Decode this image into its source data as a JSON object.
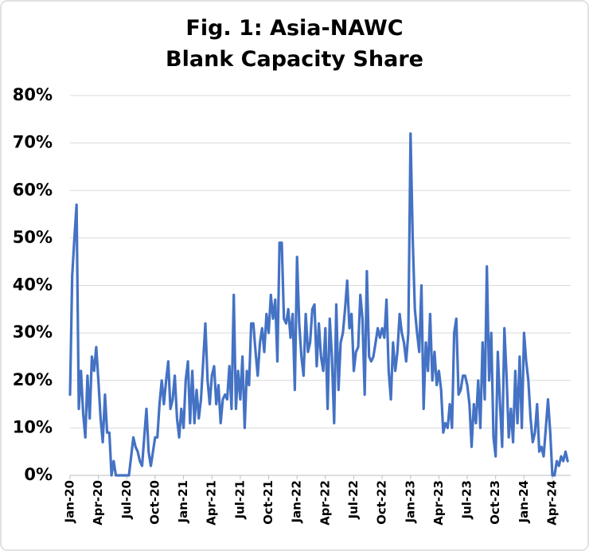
{
  "chart_data": {
    "type": "line",
    "title": [
      "Fig. 1: Asia-NAWC",
      "Blank Capacity Share"
    ],
    "categories": [
      "Jan-20",
      null,
      null,
      null,
      null,
      null,
      null,
      null,
      null,
      null,
      null,
      null,
      null,
      "Apr-20",
      null,
      null,
      null,
      null,
      null,
      null,
      null,
      null,
      null,
      null,
      null,
      null,
      "Jul-20",
      null,
      null,
      null,
      null,
      null,
      null,
      null,
      null,
      null,
      null,
      null,
      null,
      "Oct-20",
      null,
      null,
      null,
      null,
      null,
      null,
      null,
      null,
      null,
      null,
      null,
      null,
      "Jan-21",
      null,
      null,
      null,
      null,
      null,
      null,
      null,
      null,
      null,
      null,
      null,
      null,
      "Apr-21",
      null,
      null,
      null,
      null,
      null,
      null,
      null,
      null,
      null,
      null,
      null,
      null,
      "Jul-21",
      null,
      null,
      null,
      null,
      null,
      null,
      null,
      null,
      null,
      null,
      null,
      null,
      "Oct-21",
      null,
      null,
      null,
      null,
      null,
      null,
      null,
      null,
      null,
      null,
      null,
      null,
      "Jan-22",
      null,
      null,
      null,
      null,
      null,
      null,
      null,
      null,
      null,
      null,
      null,
      null,
      "Apr-22",
      null,
      null,
      null,
      null,
      null,
      null,
      null,
      null,
      null,
      null,
      null,
      null,
      "Jul-22",
      null,
      null,
      null,
      null,
      null,
      null,
      null,
      null,
      null,
      null,
      null,
      null,
      "Oct-22",
      null,
      null,
      null,
      null,
      null,
      null,
      null,
      null,
      null,
      null,
      null,
      null,
      "Jan-23",
      null,
      null,
      null,
      null,
      null,
      null,
      null,
      null,
      null,
      null,
      null,
      null,
      "Apr-23",
      null,
      null,
      null,
      null,
      null,
      null,
      null,
      null,
      null,
      null,
      null,
      null,
      "Jul-23",
      null,
      null,
      null,
      null,
      null,
      null,
      null,
      null,
      null,
      null,
      null,
      null,
      "Oct-23",
      null,
      null,
      null,
      null,
      null,
      null,
      null,
      null,
      null,
      null,
      null,
      null,
      "Jan-24",
      null,
      null,
      null,
      null,
      null,
      null,
      null,
      null,
      null,
      null,
      null,
      null,
      "Apr-24",
      null,
      null,
      null,
      null,
      null,
      null,
      null
    ],
    "series": [
      {
        "color": "#4472c4",
        "values": [
          17,
          42,
          50,
          57,
          14,
          22,
          13,
          8,
          21,
          12,
          25,
          22,
          27,
          20,
          12,
          7,
          17,
          9,
          9,
          0,
          3,
          0,
          0,
          0,
          0,
          0,
          0,
          0,
          4,
          8,
          6,
          5,
          3,
          2,
          8,
          14,
          5,
          2,
          5,
          8,
          8,
          15,
          20,
          15,
          20,
          24,
          14,
          16,
          21,
          12,
          8,
          14,
          10,
          20,
          24,
          11,
          22,
          11,
          18,
          12,
          16,
          24,
          32,
          20,
          15,
          21,
          23,
          15,
          19,
          11,
          16,
          17,
          16,
          23,
          14,
          38,
          14,
          22,
          16,
          25,
          10,
          22,
          19,
          32,
          32,
          26,
          21,
          28,
          31,
          26,
          34,
          30,
          38,
          33,
          37,
          24,
          49,
          49,
          33,
          32,
          35,
          29,
          34,
          18,
          46,
          32,
          25,
          21,
          34,
          26,
          28,
          35,
          36,
          23,
          32,
          25,
          22,
          31,
          14,
          33,
          25,
          11,
          36,
          18,
          28,
          30,
          35,
          41,
          31,
          34,
          22,
          26,
          27,
          38,
          33,
          17,
          43,
          25,
          24,
          25,
          28,
          31,
          29,
          31,
          29,
          37,
          22,
          16,
          28,
          22,
          26,
          34,
          30,
          28,
          24,
          30,
          72,
          50,
          35,
          30,
          26,
          40,
          14,
          28,
          22,
          34,
          20,
          26,
          19,
          22,
          18,
          9,
          11,
          10,
          15,
          10,
          30,
          33,
          17,
          18,
          21,
          21,
          19,
          15,
          6,
          15,
          11,
          20,
          10,
          28,
          16,
          44,
          20,
          30,
          8,
          4,
          26,
          15,
          6,
          31,
          21,
          8,
          14,
          7,
          22,
          11,
          25,
          10,
          30,
          24,
          20,
          12,
          7,
          9,
          15,
          5,
          6,
          4,
          10,
          16,
          9,
          0,
          0,
          3,
          2,
          4,
          3,
          5,
          3
        ]
      }
    ],
    "ylim": [
      0,
      80
    ],
    "yticks": [
      {
        "value": 0,
        "label": "0%"
      },
      {
        "value": 10,
        "label": "10%"
      },
      {
        "value": 20,
        "label": "20%"
      },
      {
        "value": 30,
        "label": "30%"
      },
      {
        "value": 40,
        "label": "40%"
      },
      {
        "value": 50,
        "label": "50%"
      },
      {
        "value": 60,
        "label": "60%"
      },
      {
        "value": 70,
        "label": "70%"
      },
      {
        "value": 80,
        "label": "80%"
      }
    ],
    "grid": true
  }
}
